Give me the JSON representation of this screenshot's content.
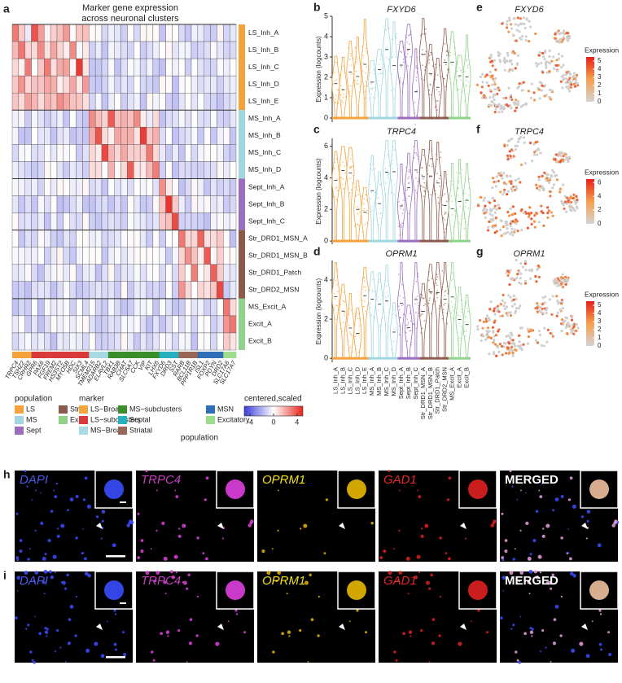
{
  "panel_a": {
    "letter": "a",
    "title_lines": [
      "Marker gene expression",
      "across neuronal clusters"
    ],
    "populations": [
      {
        "name": "LS",
        "color": "#f6a23c",
        "clusters": [
          "LS_Inh_A",
          "LS_Inh_B",
          "LS_Inh_C",
          "LS_Inh_D",
          "LS_Inh_E"
        ]
      },
      {
        "name": "MS",
        "color": "#9fd6e0",
        "clusters": [
          "MS_Inh_A",
          "MS_Inh_B",
          "MS_Inh_C",
          "MS_Inh_D"
        ]
      },
      {
        "name": "Sept",
        "color": "#9a6dbf",
        "clusters": [
          "Sept_Inh_A",
          "Sept_Inh_B",
          "Sept_Inh_C"
        ]
      },
      {
        "name": "Str",
        "color": "#8c5a4c",
        "clusters": [
          "Str_DRD1_MSN_A",
          "Str_DRD1_MSN_B",
          "Str_DRD1_Patch",
          "Str_DRD2_MSN"
        ]
      },
      {
        "name": "Excit",
        "color": "#8fd28a",
        "clusters": [
          "MS_Excit_A",
          "Excit_A",
          "Excit_B"
        ]
      }
    ],
    "markers": [
      {
        "name": "LS−Broad",
        "color": "#f3a43c",
        "genes": [
          "TRPC4",
          "TSHZ2",
          "CRHR2"
        ]
      },
      {
        "name": "LS−subclusters",
        "color": "#d93b3b",
        "genes": [
          "GPR6",
          "PAX6",
          "FGF19",
          "FREM2",
          "HS3ST2",
          "MYO5B",
          "HDC",
          "SIX3",
          "SCML4"
        ]
      },
      {
        "name": "MS−Broad",
        "color": "#a6dbe6",
        "genes": [
          "TMEM215",
          "ADARB2",
          "ELAVL2"
        ]
      },
      {
        "name": "MS−subclusters",
        "color": "#3a8f2a",
        "genes": [
          "TBX1",
          "RAB3B",
          "CHAT",
          "SLC5A7",
          "CCK",
          "VIP",
          "KIT",
          "LHX6"
        ]
      },
      {
        "name": "Septal",
        "color": "#27b0c0",
        "genes": [
          "FXYD6",
          "DRD3",
          "SST"
        ]
      },
      {
        "name": "Striatal",
        "color": "#9a6657",
        "genes": [
          "RARB",
          "BCL11B",
          "PPP1R1B"
        ]
      },
      {
        "name": "MSN",
        "color": "#2f6fb8",
        "genes": [
          "ISL1",
          "FOXP2",
          "PDYN",
          "DRD2"
        ]
      },
      {
        "name": "Excitatory",
        "color": "#9edc8e",
        "genes": [
          "SLC17A6",
          "SLC17A7"
        ]
      }
    ],
    "population_title": "population",
    "marker_title": "marker",
    "scale_title": "centered,scaled",
    "scale_lim": [
      -5,
      5
    ],
    "scale_ticks": [
      -4,
      0,
      4
    ],
    "x_title": "population"
  },
  "violins": [
    {
      "letter": "b",
      "gene": "FXYD6",
      "ylabel": "Expression (logcounts)",
      "ylim": [
        -0.2,
        5
      ],
      "yticks": [
        0,
        1,
        2,
        3,
        4,
        5
      ]
    },
    {
      "letter": "c",
      "gene": "TRPC4",
      "ylabel": "Expression (logcounts)",
      "ylim": [
        -0.2,
        6.5
      ],
      "yticks": [
        0,
        2,
        4,
        6
      ]
    },
    {
      "letter": "d",
      "gene": "OPRM1",
      "ylabel": "Expression (logcounts)",
      "ylim": [
        -0.2,
        5
      ],
      "yticks": [
        0,
        2,
        4
      ]
    }
  ],
  "tsne": [
    {
      "letter": "e",
      "gene": "FXYD6",
      "legend_title": "Expression",
      "lim": [
        0,
        5.5
      ],
      "ticks": [
        0,
        1,
        2,
        3,
        4,
        5
      ]
    },
    {
      "letter": "f",
      "gene": "TRPC4",
      "legend_title": "Expression",
      "lim": [
        0,
        6.5
      ],
      "ticks": [
        0,
        2,
        4,
        6
      ]
    },
    {
      "letter": "g",
      "gene": "OPRM1",
      "legend_title": "Expression",
      "lim": [
        0,
        5.5
      ],
      "ticks": [
        0,
        1,
        2,
        3,
        4,
        5
      ]
    }
  ],
  "fish": {
    "rows": [
      "h",
      "i"
    ],
    "channels": [
      {
        "name": "DAPI",
        "color": "#4a5ae8"
      },
      {
        "name": "TRPC4",
        "color": "#c640c0"
      },
      {
        "name": "OPRM1",
        "color": "#f2e01c"
      },
      {
        "name": "GAD1",
        "color": "#e02828"
      },
      {
        "name": "MERGED",
        "color": "#ffffff"
      }
    ]
  }
}
